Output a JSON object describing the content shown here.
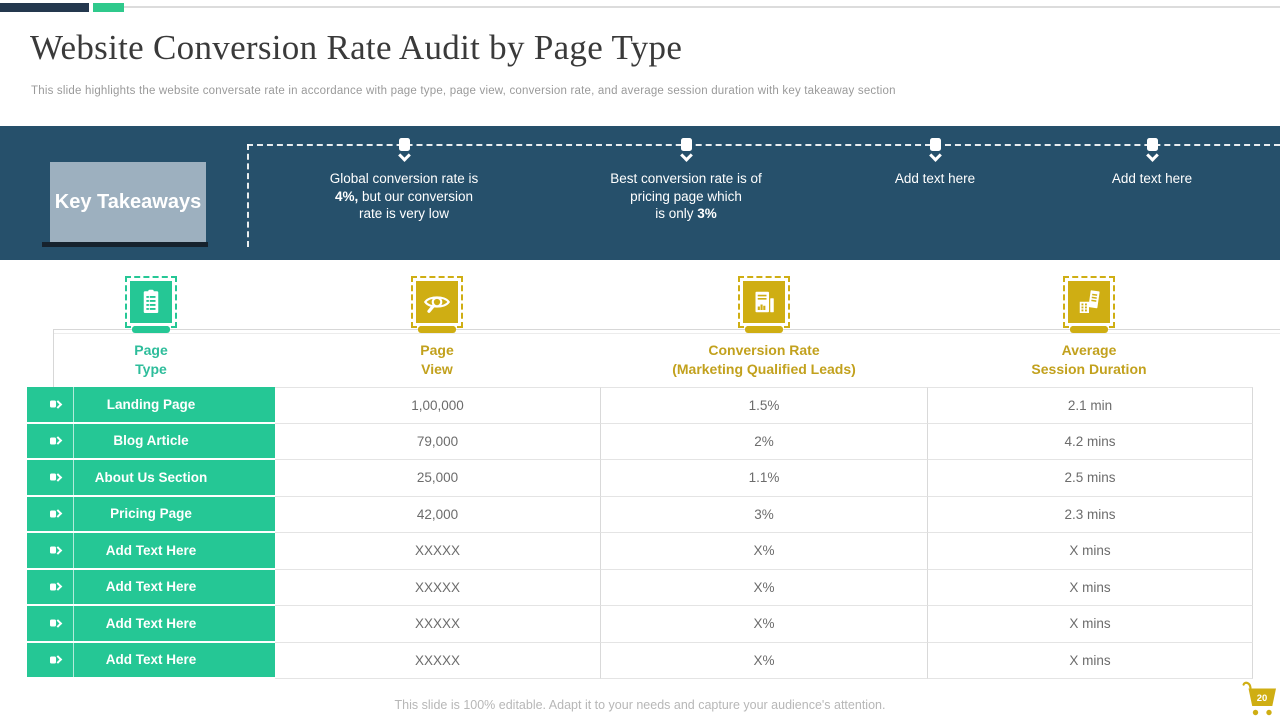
{
  "header": {
    "title": "Website Conversion Rate Audit by Page Type",
    "subtitle": "This slide highlights the website conversate rate in accordance with page type, page view, conversion rate, and average session duration with key takeaway section"
  },
  "takeaways": {
    "label": "Key Takeaways",
    "notes": [
      {
        "placeholder": false,
        "lines": [
          [
            {
              "t": "Global conversion rate is"
            }
          ],
          [
            {
              "t": "4%,",
              "b": true
            },
            {
              "t": " but our conversion"
            }
          ],
          [
            {
              "t": "rate is very low"
            }
          ]
        ]
      },
      {
        "placeholder": false,
        "lines": [
          [
            {
              "t": "Best conversion rate is of"
            }
          ],
          [
            {
              "t": "pricing page which"
            }
          ],
          [
            {
              "t": "is only "
            },
            {
              "t": "3%",
              "b": true
            }
          ]
        ]
      },
      {
        "placeholder": true,
        "lines": [
          [
            {
              "t": "Add text here"
            }
          ]
        ]
      },
      {
        "placeholder": true,
        "lines": [
          [
            {
              "t": "Add text here"
            }
          ]
        ]
      }
    ]
  },
  "table": {
    "columns": [
      {
        "label_lines": [
          "Page",
          "Type"
        ],
        "icon": "document-list-icon",
        "theme": "teal"
      },
      {
        "label_lines": [
          "Page",
          "View"
        ],
        "icon": "eye-preview-icon",
        "theme": "gold"
      },
      {
        "label_lines": [
          "Conversion Rate",
          "(Marketing Qualified Leads)"
        ],
        "icon": "report-chart-icon",
        "theme": "gold"
      },
      {
        "label_lines": [
          "Average",
          "Session Duration"
        ],
        "icon": "analytics-building-icon",
        "theme": "gold"
      }
    ],
    "rows": [
      {
        "placeholder": false,
        "page_type": "Landing Page",
        "page_view": "1,00,000",
        "conversion_rate": "1.5%",
        "avg_session_duration": "2.1 min"
      },
      {
        "placeholder": false,
        "page_type": "Blog Article",
        "page_view": "79,000",
        "conversion_rate": "2%",
        "avg_session_duration": "4.2 mins"
      },
      {
        "placeholder": false,
        "page_type": "About Us Section",
        "page_view": "25,000",
        "conversion_rate": "1.1%",
        "avg_session_duration": "2.5 mins"
      },
      {
        "placeholder": false,
        "page_type": "Pricing Page",
        "page_view": "42,000",
        "conversion_rate": "3%",
        "avg_session_duration": "2.3 mins"
      },
      {
        "placeholder": true,
        "page_type": "Add Text Here",
        "page_view": "XXXXX",
        "conversion_rate": "X%",
        "avg_session_duration": "X mins"
      },
      {
        "placeholder": true,
        "page_type": "Add Text Here",
        "page_view": "XXXXX",
        "conversion_rate": "X%",
        "avg_session_duration": "X mins"
      },
      {
        "placeholder": true,
        "page_type": "Add Text Here",
        "page_view": "XXXXX",
        "conversion_rate": "X%",
        "avg_session_duration": "X mins"
      },
      {
        "placeholder": true,
        "page_type": "Add Text Here",
        "page_view": "XXXXX",
        "conversion_rate": "X%",
        "avg_session_duration": "X mins"
      }
    ]
  },
  "footer": {
    "text": "This slide is 100% editable. Adapt it to your needs and capture your audience's attention.",
    "page_number": "20"
  },
  "colors": {
    "teal": "#25C795",
    "gold": "#CFAE13",
    "gold_text": "#C2A11D",
    "teal_text": "#2EBD9B",
    "band_navy": "#26506B",
    "topbar_navy": "#24384E",
    "key_box": "#9DB0BF",
    "underline_navy": "#16222D"
  }
}
